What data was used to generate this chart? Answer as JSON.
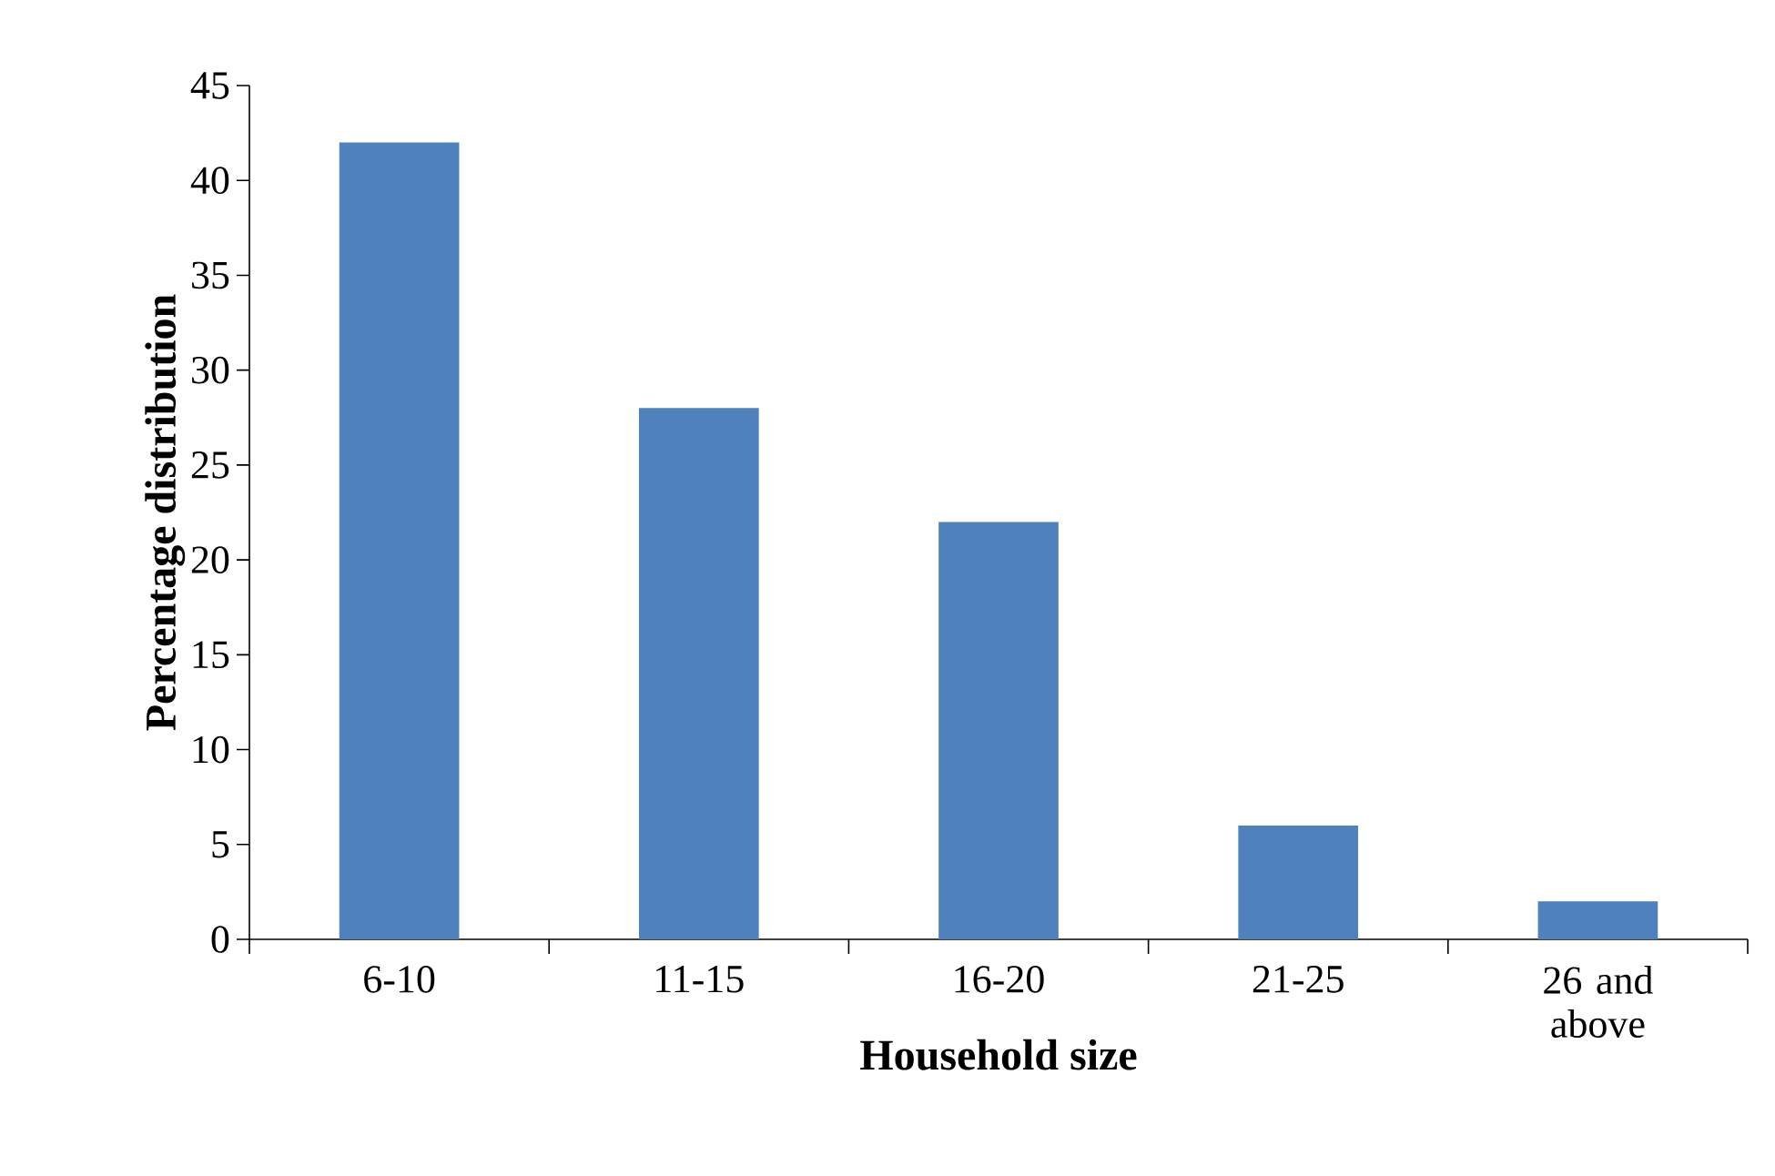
{
  "chart_data": {
    "type": "bar",
    "xlabel": "Household size",
    "ylabel": "Percentage distribution",
    "categories": [
      "6-10",
      "11-15",
      "16-20",
      "21-25",
      "26 and above"
    ],
    "values": [
      42,
      28,
      22,
      6,
      2
    ],
    "color": "#4f81bd",
    "ylim": [
      0,
      45
    ],
    "yticks": [
      0,
      5,
      10,
      15,
      20,
      25,
      30,
      35,
      40,
      45
    ],
    "grid": false
  }
}
